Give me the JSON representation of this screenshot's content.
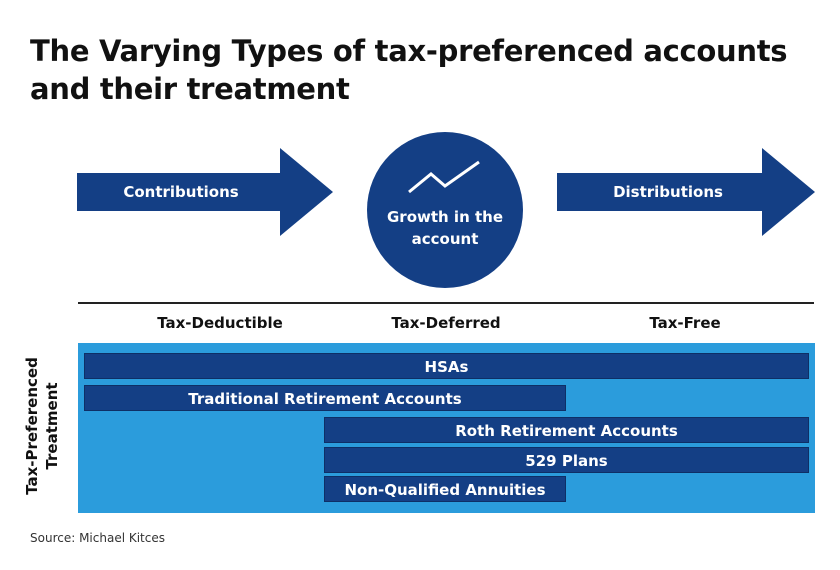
{
  "title": {
    "line1": "The Varying Types of tax-preferenced accounts",
    "line2": "and their treatment"
  },
  "flow": {
    "contributions": "Contributions",
    "growth_line1": "Growth in the",
    "growth_line2": "account",
    "distributions": "Distributions",
    "trend_icon": "trend-line-icon"
  },
  "columns": [
    "Tax-Deductible",
    "Tax-Deferred",
    "Tax-Free"
  ],
  "side_label": {
    "line1": "Tax-Preferenced",
    "line2": "Treatment"
  },
  "accounts": [
    {
      "label": "HSAs",
      "phases": [
        "Tax-Deductible",
        "Tax-Deferred",
        "Tax-Free"
      ]
    },
    {
      "label": "Traditional Retirement Accounts",
      "phases": [
        "Tax-Deductible",
        "Tax-Deferred"
      ]
    },
    {
      "label": "Roth Retirement Accounts",
      "phases": [
        "Tax-Deferred",
        "Tax-Free"
      ]
    },
    {
      "label": "529 Plans",
      "phases": [
        "Tax-Deferred",
        "Tax-Free"
      ]
    },
    {
      "label": "Non-Qualified Annuities",
      "phases": [
        "Tax-Deferred"
      ]
    }
  ],
  "source": "Source: Michael Kitces",
  "colors": {
    "dark_blue": "#143f85",
    "light_blue": "#2b9cdc"
  }
}
